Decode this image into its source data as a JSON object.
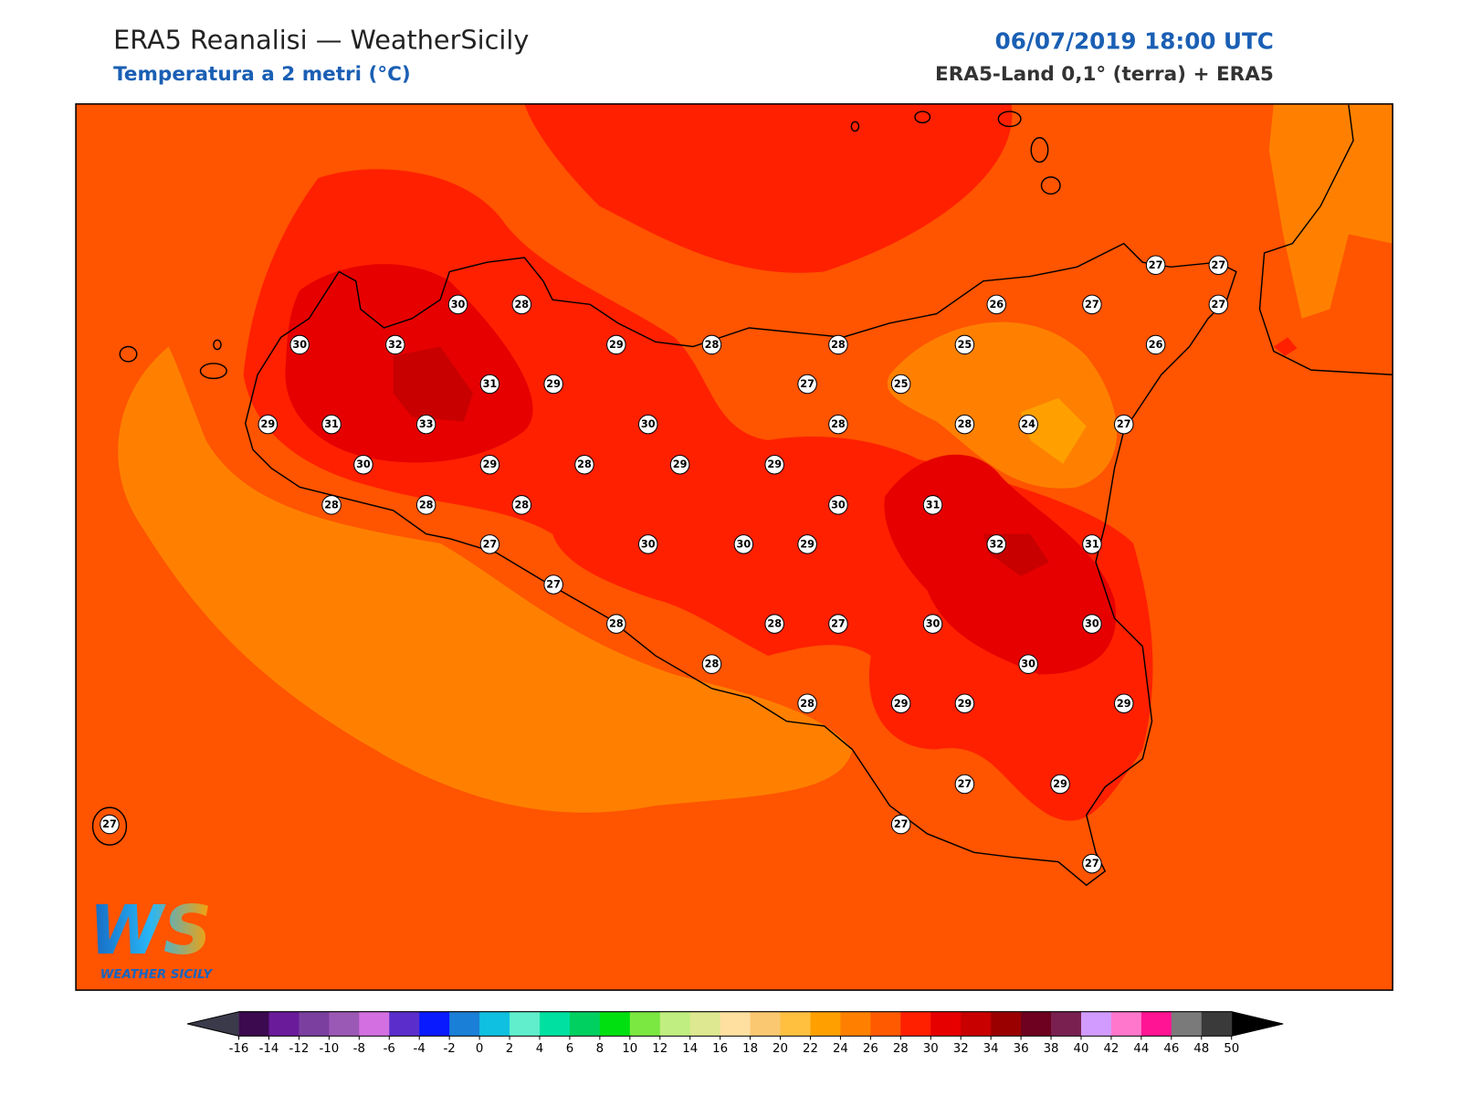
{
  "header": {
    "title": "ERA5 Reanalisi — WeatherSicily",
    "subtitle": "Temperatura a 2 metri (°C)",
    "date": "06/07/2019 18:00 UTC",
    "source": "ERA5-Land 0,1° (terra) + ERA5"
  },
  "stations": {
    "values": [
      30,
      28,
      30,
      32,
      29,
      28,
      28,
      31,
      29,
      27,
      25,
      29,
      31,
      33,
      30,
      28,
      28,
      24,
      27,
      30,
      29,
      28,
      29,
      29,
      28,
      28,
      28,
      30,
      31,
      27,
      30,
      30,
      29,
      32,
      31,
      27,
      28,
      28,
      27,
      30,
      30,
      28,
      30,
      28,
      29,
      29,
      29,
      27,
      29,
      27,
      27,
      27,
      26,
      27,
      27,
      27,
      27,
      25,
      26
    ]
  },
  "colorbar": {
    "ticks": [
      -16,
      -14,
      -12,
      -10,
      -8,
      -6,
      -4,
      -2,
      0,
      2,
      4,
      6,
      8,
      10,
      12,
      14,
      16,
      18,
      20,
      22,
      24,
      26,
      28,
      30,
      32,
      34,
      36,
      38,
      40,
      42,
      44,
      46,
      48,
      50
    ],
    "colors": [
      "#3b0a4f",
      "#6a1b9a",
      "#7b3fa0",
      "#9b59b6",
      "#d36fe0",
      "#5b2ecc",
      "#0a1aff",
      "#1a7fd6",
      "#10c0e0",
      "#60eecc",
      "#00e0a0",
      "#00d060",
      "#00e010",
      "#7ae840",
      "#c0ee80",
      "#dde890",
      "#ffe0a0",
      "#fac870",
      "#ffc040",
      "#ffa000",
      "#ff8000",
      "#ff5a00",
      "#ff2000",
      "#e60000",
      "#c80000",
      "#9a0000",
      "#6e0020",
      "#7a2050",
      "#d29bff",
      "#ff77cc",
      "#ff1493",
      "#7a7a7a",
      "#3a3a3a"
    ],
    "under_color": "#3a3a4a",
    "over_color": "#000000"
  },
  "logo": {
    "mark": "WS",
    "name": "WEATHER SICILY"
  }
}
